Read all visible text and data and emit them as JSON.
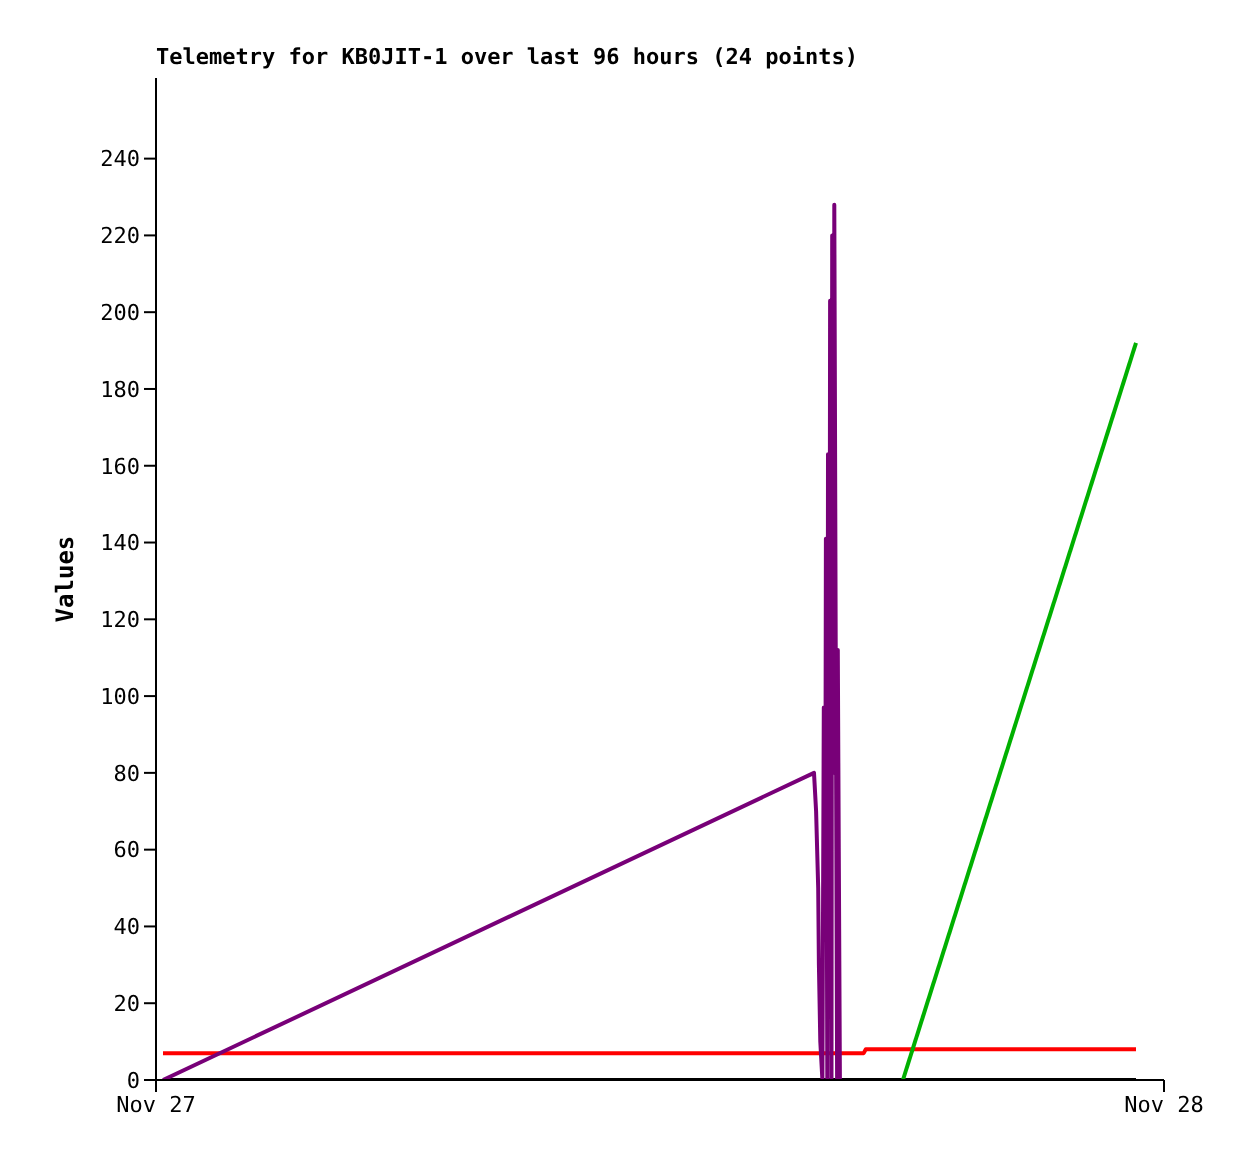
{
  "chart_data": {
    "type": "line",
    "title": "Telemetry for KB0JIT-1 over last 96 hours (24 points)",
    "ylabel": "Values",
    "xlim": [
      "--11-27",
      "--11-28"
    ],
    "xticks": [
      {
        "value": "--11-27",
        "label": "Nov 27"
      },
      {
        "value": "--11-28",
        "label": "Nov 28"
      }
    ],
    "ylim": [
      0,
      261
    ],
    "yticks": [
      0,
      20,
      40,
      60,
      80,
      100,
      120,
      140,
      160,
      180,
      200,
      220,
      240
    ],
    "series": [
      {
        "color": "#000000",
        "x": [
          "--11-27T00:10",
          "--11-27T23:20"
        ],
        "values": [
          0,
          0
        ]
      },
      {
        "color": "#ff0000",
        "x": [
          "--11-27T00:10",
          "--11-27T16:51",
          "--11-27T16:54",
          "--11-27T23:20"
        ],
        "values": [
          7,
          7,
          8,
          8
        ]
      },
      {
        "color": "#00b000",
        "x": [
          "--11-27T17:47",
          "--11-27T23:20"
        ],
        "values": [
          0,
          192
        ]
      },
      {
        "color": "#780078",
        "x": [
          "--11-27T00:10",
          "--11-27T15:40",
          "--11-27T15:43",
          "--11-27T15:46",
          "--11-27T15:47",
          "--11-27T15:49",
          "--11-27T15:52",
          "--11-27T15:54",
          "--11-27T15:56",
          "--11-27T15:57",
          "--11-27T15:59",
          "--11-27T16:00",
          "--11-27T16:02",
          "--11-27T16:03",
          "--11-27T16:05",
          "--11-27T16:06",
          "--11-27T16:08",
          "--11-27T16:09",
          "--11-27T16:11",
          "--11-27T16:13",
          "--11-27T16:14",
          "--11-27T16:17"
        ],
        "values": [
          0,
          80,
          70,
          50,
          30,
          10,
          0,
          97,
          40,
          141,
          0,
          163,
          60,
          203,
          0,
          220,
          80,
          228,
          114,
          0,
          112,
          0
        ]
      }
    ]
  }
}
